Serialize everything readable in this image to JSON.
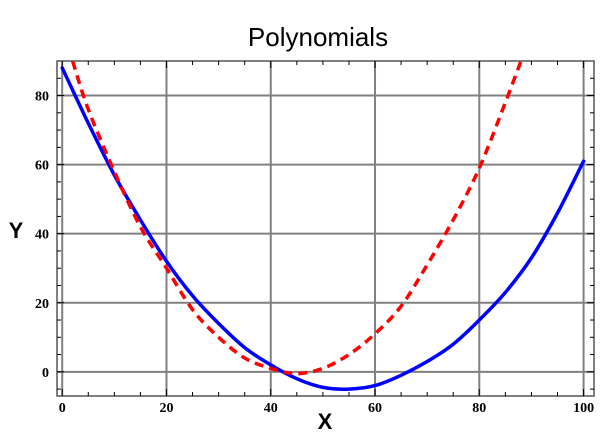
{
  "chart_data": {
    "type": "line",
    "title": "Polynomials",
    "xlabel": "X",
    "ylabel": "Y",
    "xlim": [
      -1,
      102
    ],
    "ylim": [
      -7,
      90
    ],
    "x_ticks": [
      0,
      20,
      40,
      60,
      80,
      100
    ],
    "y_ticks": [
      0,
      20,
      40,
      60,
      80
    ],
    "grid": true,
    "series": [
      {
        "style": "solid",
        "color": "#0000ff",
        "x": [
          0,
          5,
          10,
          15,
          20,
          25,
          30,
          35,
          40,
          45,
          50,
          55,
          60,
          65,
          70,
          75,
          80,
          85,
          90,
          95,
          100
        ],
        "y": [
          88,
          72,
          57,
          44,
          32,
          22,
          14,
          7,
          2,
          -2,
          -4.5,
          -5,
          -4,
          -1,
          3,
          8,
          15,
          23,
          33,
          46,
          61
        ]
      },
      {
        "style": "dashed",
        "color": "#ff0000",
        "x": [
          2,
          5,
          10,
          15,
          20,
          25,
          30,
          35,
          40,
          45,
          50,
          55,
          60,
          65,
          70,
          75,
          80,
          85,
          88
        ],
        "y": [
          90,
          76,
          58,
          42,
          30,
          18,
          10,
          4,
          1,
          -0.5,
          1,
          5,
          11,
          19,
          31,
          44,
          59,
          78,
          90
        ]
      }
    ]
  }
}
